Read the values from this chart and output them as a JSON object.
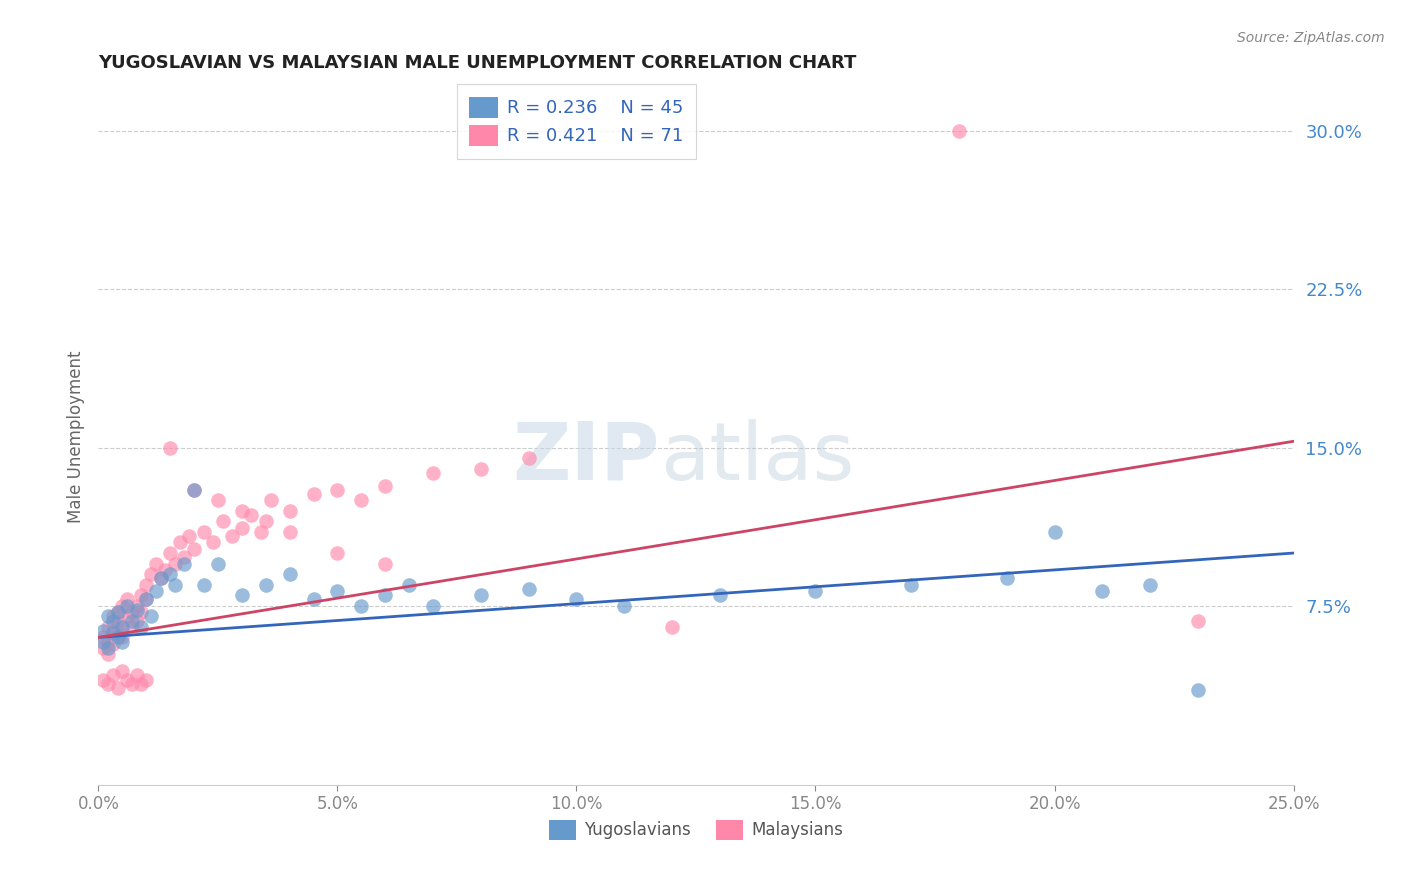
{
  "title": "YUGOSLAVIAN VS MALAYSIAN MALE UNEMPLOYMENT CORRELATION CHART",
  "source": "Source: ZipAtlas.com",
  "xlabel_ticks": [
    "0.0%",
    "5.0%",
    "10.0%",
    "15.0%",
    "20.0%",
    "25.0%"
  ],
  "ylabel_label": "Male Unemployment",
  "ylabel_ticks": [
    "7.5%",
    "15.0%",
    "22.5%",
    "30.0%"
  ],
  "xlim": [
    0.0,
    0.25
  ],
  "ylim": [
    -0.01,
    0.32
  ],
  "yugoslav_color": "#6699CC",
  "malaysian_color": "#FF88AA",
  "yugoslav_line_color": "#3366BB",
  "malaysian_line_color": "#CC4466",
  "legend_R_yugoslav": "R = 0.236",
  "legend_N_yugoslav": "N = 45",
  "legend_R_malaysian": "R = 0.421",
  "legend_N_malaysian": "N = 71",
  "legend_label_yugoslav": "Yugoslavians",
  "legend_label_malaysian": "Malaysians",
  "watermark_zip": "ZIP",
  "watermark_atlas": "atlas",
  "yugoslav_x": [
    0.001,
    0.001,
    0.002,
    0.002,
    0.003,
    0.003,
    0.004,
    0.004,
    0.005,
    0.005,
    0.006,
    0.007,
    0.008,
    0.009,
    0.01,
    0.011,
    0.012,
    0.013,
    0.015,
    0.016,
    0.018,
    0.02,
    0.022,
    0.025,
    0.03,
    0.035,
    0.04,
    0.045,
    0.05,
    0.055,
    0.06,
    0.065,
    0.07,
    0.08,
    0.09,
    0.1,
    0.11,
    0.13,
    0.15,
    0.17,
    0.19,
    0.2,
    0.21,
    0.22,
    0.23
  ],
  "yugoslav_y": [
    0.058,
    0.063,
    0.055,
    0.07,
    0.062,
    0.068,
    0.06,
    0.072,
    0.065,
    0.058,
    0.075,
    0.068,
    0.073,
    0.065,
    0.078,
    0.07,
    0.082,
    0.088,
    0.09,
    0.085,
    0.095,
    0.13,
    0.085,
    0.095,
    0.08,
    0.085,
    0.09,
    0.078,
    0.082,
    0.075,
    0.08,
    0.085,
    0.075,
    0.08,
    0.083,
    0.078,
    0.075,
    0.08,
    0.082,
    0.085,
    0.088,
    0.11,
    0.082,
    0.085,
    0.035
  ],
  "malaysian_x": [
    0.001,
    0.001,
    0.002,
    0.002,
    0.002,
    0.003,
    0.003,
    0.003,
    0.004,
    0.004,
    0.004,
    0.005,
    0.005,
    0.005,
    0.006,
    0.006,
    0.007,
    0.007,
    0.008,
    0.008,
    0.009,
    0.009,
    0.01,
    0.01,
    0.011,
    0.012,
    0.013,
    0.014,
    0.015,
    0.016,
    0.017,
    0.018,
    0.019,
    0.02,
    0.022,
    0.024,
    0.026,
    0.028,
    0.03,
    0.032,
    0.034,
    0.036,
    0.04,
    0.045,
    0.05,
    0.055,
    0.06,
    0.07,
    0.08,
    0.09,
    0.001,
    0.002,
    0.003,
    0.004,
    0.005,
    0.006,
    0.007,
    0.008,
    0.009,
    0.01,
    0.015,
    0.02,
    0.025,
    0.03,
    0.035,
    0.04,
    0.05,
    0.06,
    0.18,
    0.23,
    0.12
  ],
  "malaysian_y": [
    0.06,
    0.055,
    0.065,
    0.058,
    0.052,
    0.07,
    0.063,
    0.057,
    0.068,
    0.062,
    0.072,
    0.065,
    0.075,
    0.06,
    0.07,
    0.078,
    0.065,
    0.072,
    0.075,
    0.068,
    0.08,
    0.072,
    0.078,
    0.085,
    0.09,
    0.095,
    0.088,
    0.092,
    0.1,
    0.095,
    0.105,
    0.098,
    0.108,
    0.102,
    0.11,
    0.105,
    0.115,
    0.108,
    0.112,
    0.118,
    0.11,
    0.125,
    0.12,
    0.128,
    0.13,
    0.125,
    0.132,
    0.138,
    0.14,
    0.145,
    0.04,
    0.038,
    0.042,
    0.036,
    0.044,
    0.04,
    0.038,
    0.042,
    0.038,
    0.04,
    0.15,
    0.13,
    0.125,
    0.12,
    0.115,
    0.11,
    0.1,
    0.095,
    0.3,
    0.068,
    0.065
  ]
}
